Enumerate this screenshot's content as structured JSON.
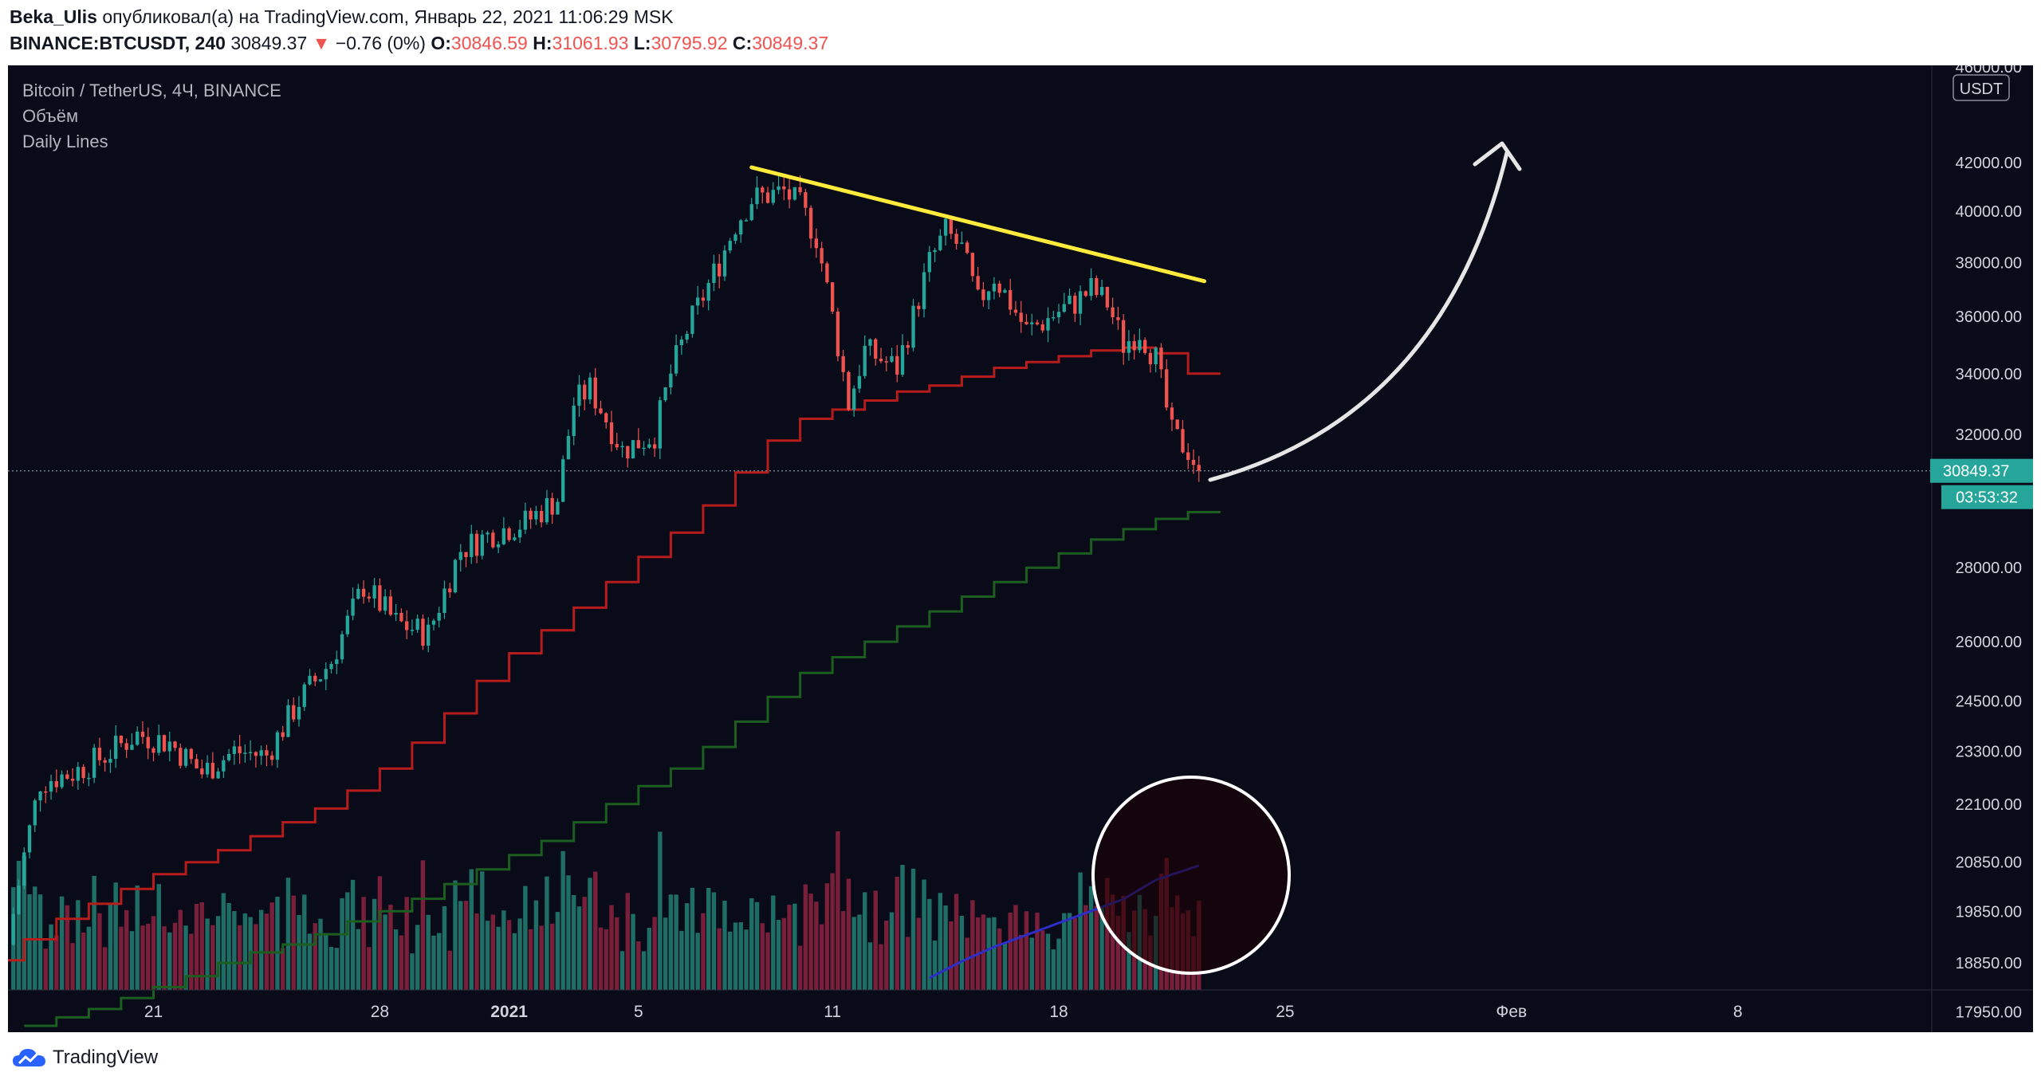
{
  "header": {
    "author": "Beka_Ulis",
    "published_text": "опубликовал(а) на TradingView.com, Январь 22, 2021 11:06:29 MSK",
    "symbol": "BINANCE:BTCUSDT, 240",
    "last": "30849.37",
    "change_arrow": "▼",
    "change": "−0.76 (0%)",
    "o_label": "O:",
    "o_value": "30846.59",
    "h_label": "H:",
    "h_value": "31061.93",
    "l_label": "L:",
    "l_value": "30795.92",
    "c_label": "C:",
    "c_value": "30849.37"
  },
  "legend": {
    "title": "Bitcoin / TetherUS, 4Ч, BINANCE",
    "volume": "Объём",
    "daily_lines": "Daily Lines"
  },
  "price_scale": {
    "currency_badge": "USDT",
    "last_price_tag": "30849.37",
    "countdown_tag": "03:53:32"
  },
  "footer": {
    "brand": "TradingView"
  },
  "colors": {
    "background": "#0a0b19",
    "up_candle": "#26a69a",
    "down_candle": "#ef5350",
    "up_volume": "#1e6e66",
    "down_volume": "#7a1f3a",
    "trendline": "#ffeb3b",
    "daily_line_red": "#b71c1c",
    "daily_line_green": "#1b5e20",
    "volume_ma": "#2d2dc8",
    "annotation": "#e6e6e6",
    "price_tag": "#26a69a"
  },
  "chart_data": {
    "type": "candlestick",
    "title": "Bitcoin / TetherUS, 4Ч, BINANCE",
    "y_scale": "log",
    "ylim": [
      17700,
      46000
    ],
    "y_ticks": [
      42000,
      40000,
      38000,
      36000,
      34000,
      32000,
      28000,
      26000,
      24500,
      23300,
      22100,
      20850,
      19850,
      18850,
      17950
    ],
    "y_tick_labels": [
      "42000.00",
      "40000.00",
      "38000.00",
      "36000.00",
      "34000.00",
      "32000.00",
      "28000.00",
      "26000.00",
      "24500.00",
      "23300.00",
      "22100.00",
      "20850.00",
      "19850.00",
      "18850.00",
      "17950.00"
    ],
    "y_top_partial_label": "46000.00",
    "x_ticks": [
      {
        "date": "2020-12-21",
        "label": "21",
        "bold": false
      },
      {
        "date": "2020-12-28",
        "label": "28",
        "bold": false
      },
      {
        "date": "2021-01-01",
        "label": "2021",
        "bold": true
      },
      {
        "date": "2021-01-05",
        "label": "5",
        "bold": false
      },
      {
        "date": "2021-01-11",
        "label": "11",
        "bold": false
      },
      {
        "date": "2021-01-18",
        "label": "18",
        "bold": false
      },
      {
        "date": "2021-01-25",
        "label": "25",
        "bold": false
      },
      {
        "date": "2021-02-01",
        "label": "Фев",
        "bold": false
      },
      {
        "date": "2021-02-08",
        "label": "8",
        "bold": false
      }
    ],
    "x_range": {
      "start": "2020-12-16T12:00",
      "end": "2021-02-14T00:00"
    },
    "last_bar": "2021-01-22T08:00",
    "price_path": [
      [
        "2020-12-16T12:00",
        19200
      ],
      [
        "2020-12-17T00:00",
        21000
      ],
      [
        "2020-12-17T12:00",
        22600
      ],
      [
        "2020-12-18T12:00",
        22800
      ],
      [
        "2020-12-19T12:00",
        23200
      ],
      [
        "2020-12-20T12:00",
        23700
      ],
      [
        "2020-12-21T12:00",
        23500
      ],
      [
        "2020-12-22T12:00",
        22800
      ],
      [
        "2020-12-23T12:00",
        23300
      ],
      [
        "2020-12-24T12:00",
        23200
      ],
      [
        "2020-12-25T12:00",
        24500
      ],
      [
        "2020-12-26T12:00",
        25500
      ],
      [
        "2020-12-27T12:00",
        27500
      ],
      [
        "2020-12-28T00:00",
        27000
      ],
      [
        "2020-12-28T12:00",
        26500
      ],
      [
        "2020-12-29T12:00",
        26200
      ],
      [
        "2020-12-30T12:00",
        28500
      ],
      [
        "2020-12-31T12:00",
        29000
      ],
      [
        "2021-01-01T12:00",
        29300
      ],
      [
        "2021-01-02T12:00",
        30000
      ],
      [
        "2021-01-03T00:00",
        33000
      ],
      [
        "2021-01-03T12:00",
        33500
      ],
      [
        "2021-01-04T00:00",
        32500
      ],
      [
        "2021-01-04T12:00",
        31500
      ],
      [
        "2021-01-05T12:00",
        32000
      ],
      [
        "2021-01-06T00:00",
        34000
      ],
      [
        "2021-01-06T12:00",
        35500
      ],
      [
        "2021-01-07T12:00",
        38000
      ],
      [
        "2021-01-08T00:00",
        39500
      ],
      [
        "2021-01-08T12:00",
        40500
      ],
      [
        "2021-01-09T12:00",
        40800
      ],
      [
        "2021-01-10T00:00",
        40200
      ],
      [
        "2021-01-10T12:00",
        39000
      ],
      [
        "2021-01-11T00:00",
        36000
      ],
      [
        "2021-01-11T12:00",
        33000
      ],
      [
        "2021-01-12T00:00",
        34800
      ],
      [
        "2021-01-12T12:00",
        34500
      ],
      [
        "2021-01-13T00:00",
        34200
      ],
      [
        "2021-01-13T12:00",
        36000
      ],
      [
        "2021-01-14T00:00",
        38000
      ],
      [
        "2021-01-14T12:00",
        39200
      ],
      [
        "2021-01-15T00:00",
        38500
      ],
      [
        "2021-01-15T12:00",
        36500
      ],
      [
        "2021-01-16T00:00",
        37500
      ],
      [
        "2021-01-16T12:00",
        36500
      ],
      [
        "2021-01-17T00:00",
        35500
      ],
      [
        "2021-01-17T12:00",
        35800
      ],
      [
        "2021-01-18T00:00",
        36200
      ],
      [
        "2021-01-18T12:00",
        36500
      ],
      [
        "2021-01-19T00:00",
        37000
      ],
      [
        "2021-01-19T12:00",
        36500
      ],
      [
        "2021-01-20T00:00",
        35000
      ],
      [
        "2021-01-20T12:00",
        35500
      ],
      [
        "2021-01-21T00:00",
        34500
      ],
      [
        "2021-01-21T12:00",
        32000
      ],
      [
        "2021-01-22T00:00",
        31500
      ],
      [
        "2021-01-22T08:00",
        30849.37
      ]
    ],
    "daily_line_red": [
      [
        "2020-12-16",
        18900
      ],
      [
        "2020-12-17",
        19300
      ],
      [
        "2020-12-18",
        19700
      ],
      [
        "2020-12-19",
        20000
      ],
      [
        "2020-12-20",
        20300
      ],
      [
        "2020-12-21",
        20600
      ],
      [
        "2020-12-22",
        20850
      ],
      [
        "2020-12-23",
        21100
      ],
      [
        "2020-12-24",
        21400
      ],
      [
        "2020-12-25",
        21700
      ],
      [
        "2020-12-26",
        22000
      ],
      [
        "2020-12-27",
        22400
      ],
      [
        "2020-12-28",
        22900
      ],
      [
        "2020-12-29",
        23500
      ],
      [
        "2020-12-30",
        24200
      ],
      [
        "2020-12-31",
        25000
      ],
      [
        "2021-01-01",
        25700
      ],
      [
        "2021-01-02",
        26300
      ],
      [
        "2021-01-03",
        26900
      ],
      [
        "2021-01-04",
        27600
      ],
      [
        "2021-01-05",
        28300
      ],
      [
        "2021-01-06",
        29000
      ],
      [
        "2021-01-07",
        29800
      ],
      [
        "2021-01-08",
        30800
      ],
      [
        "2021-01-09",
        31800
      ],
      [
        "2021-01-10",
        32500
      ],
      [
        "2021-01-11",
        32800
      ],
      [
        "2021-01-12",
        33100
      ],
      [
        "2021-01-13",
        33400
      ],
      [
        "2021-01-14",
        33600
      ],
      [
        "2021-01-15",
        33900
      ],
      [
        "2021-01-16",
        34200
      ],
      [
        "2021-01-17",
        34400
      ],
      [
        "2021-01-18",
        34600
      ],
      [
        "2021-01-19",
        34800
      ],
      [
        "2021-01-20",
        34900
      ],
      [
        "2021-01-21",
        34700
      ],
      [
        "2021-01-22",
        34000
      ]
    ],
    "daily_line_green": [
      [
        "2020-12-17",
        17700
      ],
      [
        "2020-12-18",
        17850
      ],
      [
        "2020-12-19",
        18000
      ],
      [
        "2020-12-20",
        18200
      ],
      [
        "2020-12-21",
        18400
      ],
      [
        "2020-12-22",
        18600
      ],
      [
        "2020-12-23",
        18850
      ],
      [
        "2020-12-24",
        19050
      ],
      [
        "2020-12-25",
        19200
      ],
      [
        "2020-12-26",
        19400
      ],
      [
        "2020-12-27",
        19650
      ],
      [
        "2020-12-28",
        19850
      ],
      [
        "2020-12-29",
        20100
      ],
      [
        "2020-12-30",
        20400
      ],
      [
        "2020-12-31",
        20700
      ],
      [
        "2021-01-01",
        21000
      ],
      [
        "2021-01-02",
        21300
      ],
      [
        "2021-01-03",
        21700
      ],
      [
        "2021-01-04",
        22100
      ],
      [
        "2021-01-05",
        22500
      ],
      [
        "2021-01-06",
        22900
      ],
      [
        "2021-01-07",
        23400
      ],
      [
        "2021-01-08",
        24000
      ],
      [
        "2021-01-09",
        24600
      ],
      [
        "2021-01-10",
        25200
      ],
      [
        "2021-01-11",
        25600
      ],
      [
        "2021-01-12",
        26000
      ],
      [
        "2021-01-13",
        26400
      ],
      [
        "2021-01-14",
        26800
      ],
      [
        "2021-01-15",
        27200
      ],
      [
        "2021-01-16",
        27600
      ],
      [
        "2021-01-17",
        28000
      ],
      [
        "2021-01-18",
        28400
      ],
      [
        "2021-01-19",
        28800
      ],
      [
        "2021-01-20",
        29100
      ],
      [
        "2021-01-21",
        29400
      ],
      [
        "2021-01-22",
        29600
      ]
    ],
    "trendline": {
      "from": [
        "2021-01-08T12:00",
        41800
      ],
      "to": [
        "2021-01-22T12:00",
        37300
      ]
    },
    "volume_ma_path": [
      [
        "2021-01-14T00:00",
        0.05
      ],
      [
        "2021-01-15T00:00",
        0.12
      ],
      [
        "2021-01-16T00:00",
        0.18
      ],
      [
        "2021-01-17T00:00",
        0.23
      ],
      [
        "2021-01-18T00:00",
        0.28
      ],
      [
        "2021-01-19T00:00",
        0.33
      ],
      [
        "2021-01-20T00:00",
        0.38
      ],
      [
        "2021-01-21T00:00",
        0.46
      ],
      [
        "2021-01-22T08:00",
        0.52
      ]
    ],
    "last_price": 30849.37
  }
}
